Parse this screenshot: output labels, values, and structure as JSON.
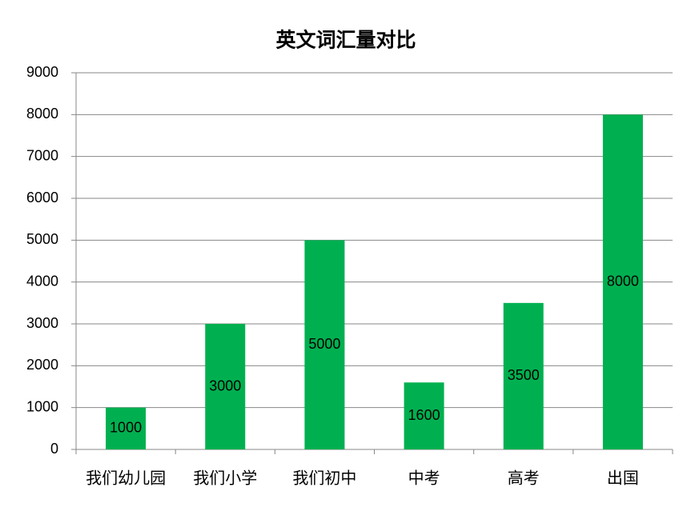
{
  "chart_data": {
    "type": "bar",
    "title": "英文词汇量对比",
    "categories": [
      "我们幼儿园",
      "我们小学",
      "我们初中",
      "中考",
      "高考",
      "出国"
    ],
    "values": [
      1000,
      3000,
      5000,
      1600,
      3500,
      8000
    ],
    "color": "#00b050",
    "ylim": [
      0,
      9000
    ],
    "yticks": [
      0,
      1000,
      2000,
      3000,
      4000,
      5000,
      6000,
      7000,
      8000,
      9000
    ],
    "grid": true
  }
}
